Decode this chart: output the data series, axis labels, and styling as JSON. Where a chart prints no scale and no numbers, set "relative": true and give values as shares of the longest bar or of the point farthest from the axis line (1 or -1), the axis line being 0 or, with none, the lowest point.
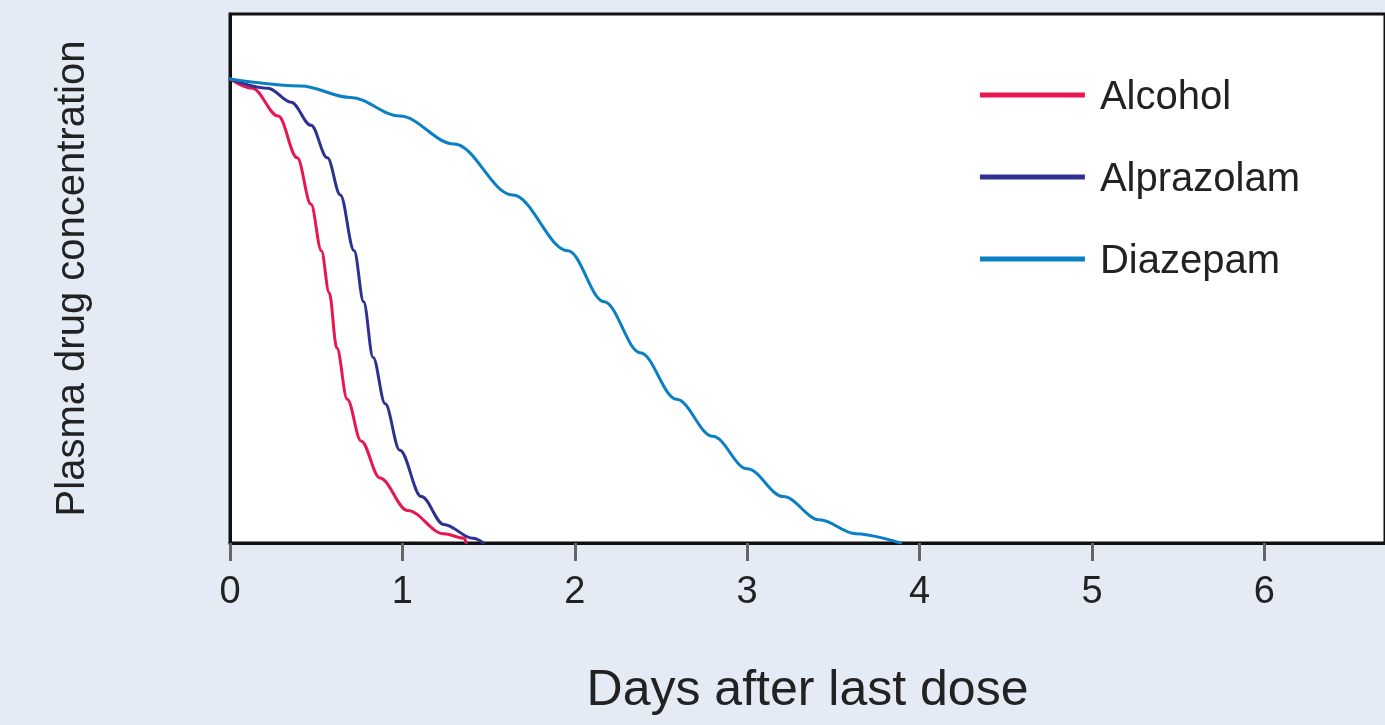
{
  "chart_data": {
    "type": "line",
    "xlabel": "Days after last dose",
    "ylabel": "Plasma drug concentration",
    "relative": true,
    "xlim": [
      0,
      6.7
    ],
    "xticks": [
      0,
      1,
      2,
      3,
      4,
      5,
      6
    ],
    "grid": false,
    "legend": "top right",
    "marker": "none",
    "line_style": "solid",
    "series": [
      {
        "name": "Alcohol",
        "color": "#e8174f",
        "x": [
          0,
          0.13,
          0.28,
          0.39,
          0.47,
          0.53,
          0.575,
          0.62,
          0.68,
          0.76,
          0.87,
          1.03,
          1.24,
          1.36,
          1.37
        ],
        "values": [
          1,
          0.98,
          0.92,
          0.83,
          0.73,
          0.63,
          0.54,
          0.42,
          0.31,
          0.22,
          0.14,
          0.07,
          0.02,
          0.01,
          0
        ]
      },
      {
        "name": "Alprazolam",
        "color": "#2e3192",
        "x": [
          0,
          0.22,
          0.355,
          0.47,
          0.565,
          0.64,
          0.72,
          0.775,
          0.83,
          0.9,
          0.985,
          1.11,
          1.24,
          1.41,
          1.47
        ],
        "values": [
          1,
          0.98,
          0.95,
          0.9,
          0.83,
          0.75,
          0.63,
          0.52,
          0.4,
          0.3,
          0.2,
          0.1,
          0.04,
          0.01,
          0
        ]
      },
      {
        "name": "Diazepam",
        "color": "#0a7fc4",
        "x": [
          0,
          0.41,
          0.7,
          0.985,
          1.3,
          1.64,
          1.96,
          2.17,
          2.38,
          2.59,
          2.8,
          3.0,
          3.21,
          3.42,
          3.63,
          3.89
        ],
        "values": [
          1,
          0.985,
          0.96,
          0.92,
          0.86,
          0.75,
          0.63,
          0.52,
          0.41,
          0.31,
          0.23,
          0.16,
          0.1,
          0.05,
          0.02,
          0
        ]
      }
    ]
  }
}
